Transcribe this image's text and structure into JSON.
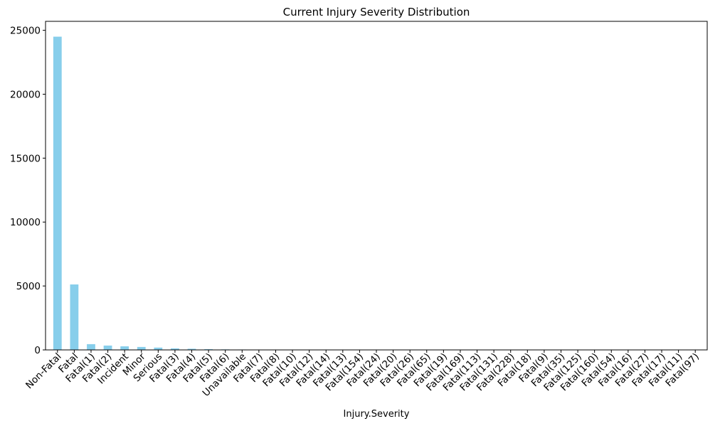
{
  "chart_data": {
    "type": "bar",
    "title": "Current Injury Severity Distribution",
    "xlabel": "Injury.Severity",
    "ylabel": "",
    "ylim": [
      0,
      25700
    ],
    "yticks": [
      0,
      5000,
      10000,
      15000,
      20000,
      25000
    ],
    "bar_color": "#87CEEB",
    "grid": false,
    "legend": "none",
    "categories": [
      "Non-Fatal",
      "Fatal",
      "Fatal(1)",
      "Fatal(2)",
      "Incident",
      "Minor",
      "Serious",
      "Fatal(3)",
      "Fatal(4)",
      "Fatal(5)",
      "Fatal(6)",
      "Unavailable",
      "Fatal(7)",
      "Fatal(8)",
      "Fatal(10)",
      "Fatal(12)",
      "Fatal(14)",
      "Fatal(13)",
      "Fatal(154)",
      "Fatal(24)",
      "Fatal(20)",
      "Fatal(26)",
      "Fatal(65)",
      "Fatal(19)",
      "Fatal(169)",
      "Fatal(113)",
      "Fatal(131)",
      "Fatal(228)",
      "Fatal(18)",
      "Fatal(9)",
      "Fatal(35)",
      "Fatal(125)",
      "Fatal(160)",
      "Fatal(54)",
      "Fatal(16)",
      "Fatal(27)",
      "Fatal(17)",
      "Fatal(11)",
      "Fatal(97)"
    ],
    "values": [
      24500,
      5120,
      450,
      340,
      280,
      230,
      180,
      120,
      90,
      60,
      40,
      30,
      20,
      15,
      10,
      8,
      6,
      5,
      4,
      3,
      3,
      3,
      2,
      2,
      2,
      1,
      1,
      1,
      1,
      1,
      1,
      1,
      1,
      1,
      1,
      1,
      1,
      1,
      1
    ]
  }
}
